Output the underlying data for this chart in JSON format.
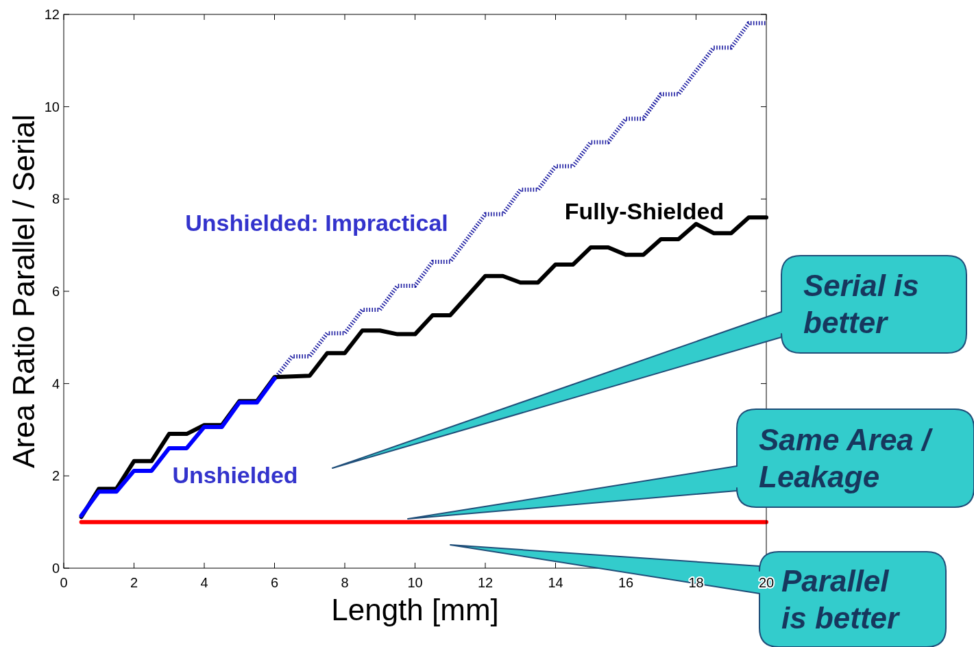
{
  "chart_data": {
    "type": "line",
    "xlabel": "Length [mm]",
    "ylabel": "Area Ratio Parallel / Serial",
    "xlim": [
      0,
      20
    ],
    "ylim": [
      0,
      12
    ],
    "xticks": [
      0,
      2,
      4,
      6,
      8,
      10,
      12,
      14,
      16,
      18,
      20
    ],
    "yticks": [
      0,
      2,
      4,
      6,
      8,
      10,
      12
    ],
    "grid": false,
    "series": [
      {
        "color": "#ff0000",
        "x": [
          0.5,
          20
        ],
        "values": [
          1,
          1
        ]
      },
      {
        "name": "Unshielded: Impractical",
        "color": "#1a1aa0",
        "line_style": "dotted",
        "x": [
          6,
          6.5,
          7,
          7.5,
          8,
          8.5,
          9,
          9.5,
          10,
          10.5,
          11,
          12,
          12.5,
          13,
          13.5,
          14,
          14.5,
          15,
          15.5,
          16,
          16.5,
          17,
          17.5,
          18.5,
          19,
          19.5,
          20
        ],
        "values": [
          4.1,
          4.59,
          4.59,
          5.09,
          5.09,
          5.6,
          5.6,
          6.12,
          6.12,
          6.64,
          6.64,
          7.67,
          7.67,
          8.2,
          8.2,
          8.71,
          8.71,
          9.23,
          9.23,
          9.74,
          9.74,
          10.27,
          10.27,
          11.28,
          11.28,
          11.81,
          11.81
        ]
      },
      {
        "name": "Fully-Shielded",
        "color": "#000000",
        "x": [
          0.5,
          1,
          1.5,
          2,
          2.5,
          3,
          3.5,
          4,
          4.5,
          5,
          5.5,
          6,
          7,
          7.5,
          8,
          8.5,
          9,
          9.5,
          10,
          10.5,
          11,
          12,
          12.5,
          13,
          13.5,
          14,
          14.5,
          15,
          15.5,
          16,
          16.5,
          17,
          17.5,
          18,
          18.5,
          19,
          19.5,
          20
        ],
        "values": [
          1.11,
          1.72,
          1.72,
          2.32,
          2.32,
          2.91,
          2.91,
          3.1,
          3.1,
          3.62,
          3.62,
          4.14,
          4.17,
          4.66,
          4.66,
          5.15,
          5.15,
          5.07,
          5.07,
          5.48,
          5.48,
          6.33,
          6.33,
          6.19,
          6.19,
          6.58,
          6.58,
          6.95,
          6.95,
          6.79,
          6.79,
          7.13,
          7.13,
          7.46,
          7.26,
          7.26,
          7.6,
          7.6
        ]
      },
      {
        "name": "Unshielded",
        "color": "#0000ff",
        "x": [
          0.5,
          1,
          1.5,
          2,
          2.5,
          3,
          3.5,
          4,
          4.5,
          5,
          5.5,
          6
        ],
        "values": [
          1.14,
          1.66,
          1.66,
          2.11,
          2.11,
          2.6,
          2.6,
          3.06,
          3.06,
          3.59,
          3.59,
          4.11
        ]
      }
    ],
    "annotations": [
      "Serial is\nbetter",
      "Same Area /\nLeakage",
      "Parallel\nis better"
    ]
  }
}
